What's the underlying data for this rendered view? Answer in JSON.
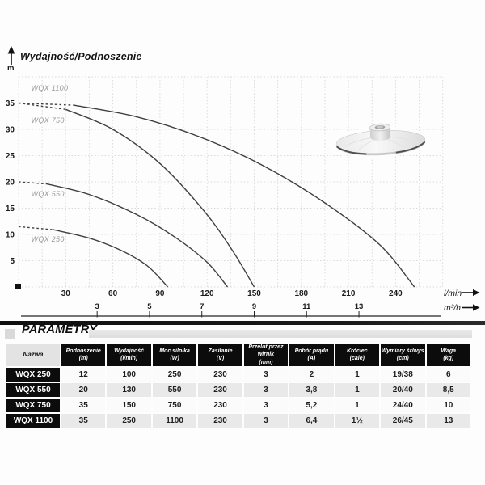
{
  "chart": {
    "title": "Wydajność/Podnoszenie",
    "y_axis_unit": "m",
    "x_axis_unit_primary": "l/min",
    "x_axis_unit_secondary": "m³/h"
  },
  "chart_data": {
    "type": "line",
    "title": "Wydajność/Podnoszenie",
    "ylabel": "m",
    "xlabel_primary": "l/min",
    "xlabel_secondary": "m³/h",
    "y_ticks": [
      5,
      10,
      15,
      20,
      25,
      30,
      35
    ],
    "x_ticks_lmin": [
      30,
      60,
      90,
      120,
      150,
      180,
      210,
      240
    ],
    "x_ticks_m3h": [
      3,
      5,
      7,
      9,
      11,
      13
    ],
    "xlim_lmin": [
      0,
      270
    ],
    "ylim_m": [
      0,
      40
    ],
    "grid": "dotted",
    "series": [
      {
        "name": "WQX 250",
        "color": "#3f3f3f",
        "max_head_m": 11.5,
        "max_flow_lmin": 95,
        "points_lmin_m": [
          [
            0,
            11.5
          ],
          [
            22,
            10.9
          ],
          [
            45,
            9.3
          ],
          [
            65,
            7.0
          ],
          [
            82,
            4.0
          ],
          [
            95,
            0
          ]
        ],
        "dash_split_index": 1,
        "label_at_lmin_m": [
          8,
          8.6
        ]
      },
      {
        "name": "WQX 550",
        "color": "#3f3f3f",
        "max_head_m": 20,
        "max_flow_lmin": 133,
        "points_lmin_m": [
          [
            0,
            20
          ],
          [
            18,
            19.6
          ],
          [
            45,
            17.6
          ],
          [
            75,
            13.8
          ],
          [
            100,
            9.4
          ],
          [
            120,
            4.7
          ],
          [
            133,
            0
          ]
        ],
        "dash_split_index": 1,
        "label_at_lmin_m": [
          8,
          17.2
        ]
      },
      {
        "name": "WQX 750",
        "color": "#3f3f3f",
        "max_head_m": 35,
        "max_flow_lmin": 150,
        "points_lmin_m": [
          [
            0,
            35
          ],
          [
            30,
            33.8
          ],
          [
            60,
            30.0
          ],
          [
            90,
            23.5
          ],
          [
            118,
            14.5
          ],
          [
            136,
            7.0
          ],
          [
            150,
            0
          ]
        ],
        "dash_split_index": 1,
        "label_at_lmin_m": [
          8,
          31.2
        ]
      },
      {
        "name": "WQX 1100",
        "color": "#3f3f3f",
        "max_head_m": 35,
        "max_flow_lmin": 252,
        "points_lmin_m": [
          [
            0,
            35
          ],
          [
            35,
            34.6
          ],
          [
            75,
            32.4
          ],
          [
            115,
            28.6
          ],
          [
            155,
            23.2
          ],
          [
            195,
            16.0
          ],
          [
            230,
            8.0
          ],
          [
            252,
            0
          ]
        ],
        "dash_split_index": 1,
        "label_at_lmin_m": [
          8,
          37.4
        ]
      }
    ]
  },
  "icons": {
    "up_arrow": "↑",
    "right_arrow": "→",
    "origin_marker": "■",
    "impeller": "metal-pump-impeller-disc"
  },
  "parameters": {
    "section_title": "PARAMETRY",
    "columns": [
      {
        "label": "Nazwa",
        "unit": ""
      },
      {
        "label": "Podnoszenie",
        "unit": "(m)"
      },
      {
        "label": "Wydajność",
        "unit": "(l/min)"
      },
      {
        "label": "Moc silnika",
        "unit": "(W)"
      },
      {
        "label": "Zasilanie",
        "unit": "(V)"
      },
      {
        "label": "Przelot przez wirnik",
        "unit": "(mm)"
      },
      {
        "label": "Pobór prądu",
        "unit": "(A)"
      },
      {
        "label": "Króciec",
        "unit": "(cale)"
      },
      {
        "label": "Wymiary śr/wys",
        "unit": "(cm)"
      },
      {
        "label": "Waga",
        "unit": "(kg)"
      }
    ],
    "rows": [
      {
        "name": "WQX 250",
        "values": [
          "12",
          "100",
          "250",
          "230",
          "3",
          "2",
          "1",
          "19/38",
          "6"
        ]
      },
      {
        "name": "WQX 550",
        "values": [
          "20",
          "130",
          "550",
          "230",
          "3",
          "3,8",
          "1",
          "20/40",
          "8,5"
        ]
      },
      {
        "name": "WQX 750",
        "values": [
          "35",
          "150",
          "750",
          "230",
          "3",
          "5,2",
          "1",
          "24/40",
          "10"
        ]
      },
      {
        "name": "WQX 1100",
        "values": [
          "35",
          "250",
          "1100",
          "230",
          "3",
          "6,4",
          "1½",
          "26/45",
          "13"
        ]
      }
    ]
  }
}
